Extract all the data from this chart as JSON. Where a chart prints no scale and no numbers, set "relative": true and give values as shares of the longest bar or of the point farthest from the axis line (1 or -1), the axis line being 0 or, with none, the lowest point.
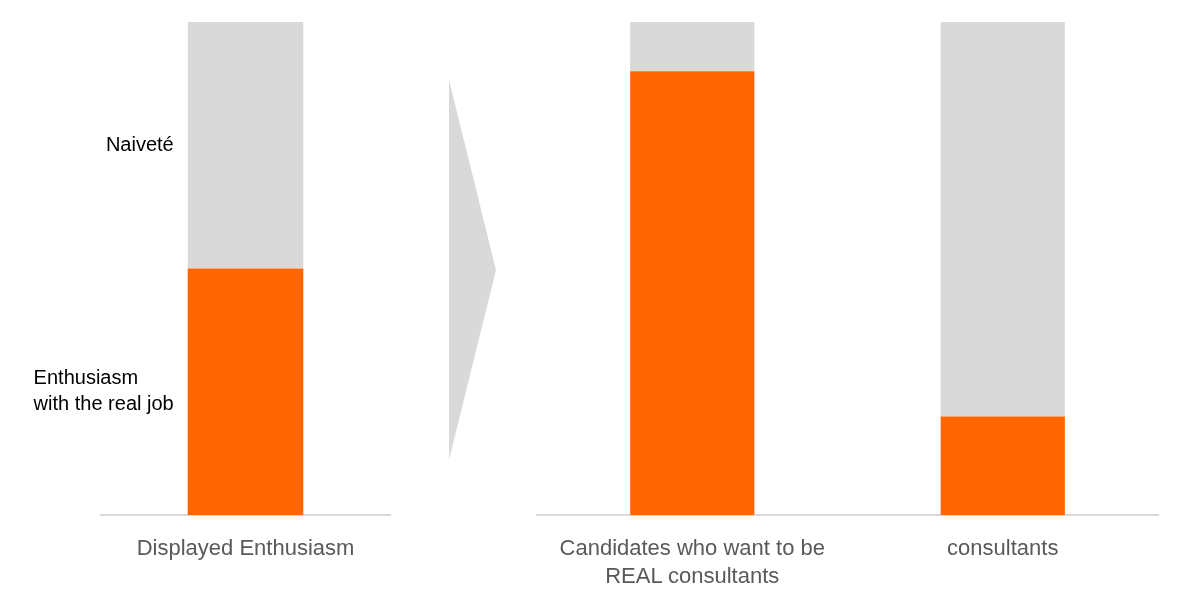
{
  "chart_data": [
    {
      "type": "bar",
      "categories": [
        "Displayed Enthusiasm"
      ],
      "series": [
        {
          "name": "Enthusiasm with the real job",
          "color": "#ff6600",
          "values": [
            0.5
          ]
        },
        {
          "name": "Naiveté",
          "color": "#d9d9d9",
          "values": [
            0.5
          ]
        }
      ],
      "stacked": true,
      "relative": true,
      "legend": "left"
    },
    {
      "type": "bar",
      "categories": [
        "Candidates who want to be REAL consultants",
        "consultants"
      ],
      "series": [
        {
          "color": "#ff6600",
          "values": [
            0.9,
            0.2
          ]
        },
        {
          "color": "#d9d9d9",
          "values": [
            0.1,
            0.8
          ]
        }
      ],
      "stacked": true,
      "relative": true
    }
  ]
}
